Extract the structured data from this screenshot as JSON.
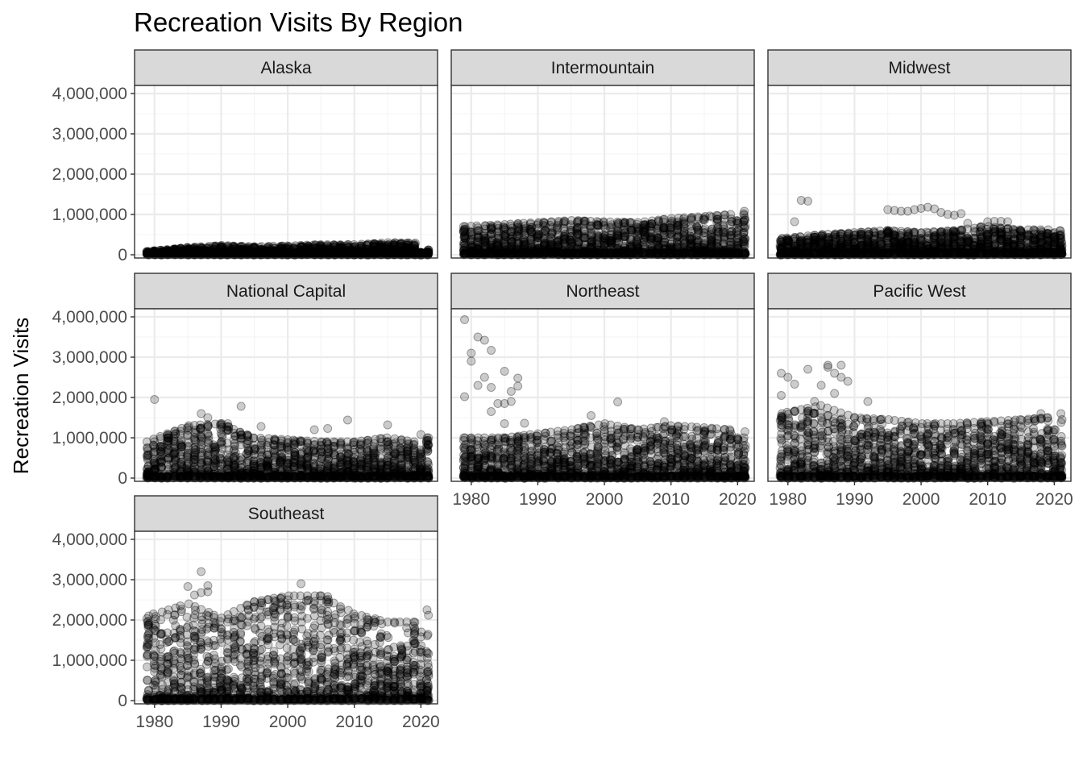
{
  "chart_data": {
    "type": "scatter",
    "title": "Recreation Visits By Region",
    "xlabel": "",
    "ylabel": "Recreation Visits",
    "xlim": [
      1977,
      2022.5
    ],
    "ylim": [
      -80000,
      4200000
    ],
    "x_ticks": [
      1980,
      1990,
      2000,
      2010,
      2020
    ],
    "x_tick_labels": [
      "1980",
      "1990",
      "2000",
      "2010",
      "2020"
    ],
    "y_ticks": [
      0,
      1000000,
      2000000,
      3000000,
      4000000
    ],
    "y_tick_labels": [
      "0",
      "1,000,000",
      "2,000,000",
      "3,000,000",
      "4,000,000"
    ],
    "grid": true,
    "facets": [
      {
        "name": "Alaska",
        "envelope": {
          "years": [
            1979,
            1985,
            1990,
            1995,
            2000,
            2005,
            2010,
            2015,
            2019,
            2020,
            2021
          ],
          "max": [
            80000,
            180000,
            230000,
            200000,
            220000,
            250000,
            250000,
            300000,
            290000,
            60000,
            120000
          ]
        },
        "outliers": []
      },
      {
        "name": "Intermountain",
        "envelope": {
          "years": [
            1979,
            1985,
            1990,
            1995,
            2000,
            2005,
            2010,
            2015,
            2019,
            2020,
            2021
          ],
          "max": [
            700000,
            750000,
            800000,
            850000,
            820000,
            800000,
            900000,
            950000,
            1000000,
            850000,
            1080000
          ]
        },
        "outliers": []
      },
      {
        "name": "Midwest",
        "envelope": {
          "years": [
            1979,
            1985,
            1990,
            1995,
            2000,
            2005,
            2010,
            2015,
            2019,
            2020,
            2021
          ],
          "max": [
            400000,
            500000,
            550000,
            600000,
            550000,
            600000,
            700000,
            620000,
            620000,
            550000,
            600000
          ]
        },
        "outliers": [
          {
            "x": 1981,
            "y": 820000
          },
          {
            "x": 1982,
            "y": 1350000
          },
          {
            "x": 1983,
            "y": 1330000
          },
          {
            "x": 1995,
            "y": 1120000
          },
          {
            "x": 1996,
            "y": 1100000
          },
          {
            "x": 1997,
            "y": 1080000
          },
          {
            "x": 1998,
            "y": 1080000
          },
          {
            "x": 1999,
            "y": 1120000
          },
          {
            "x": 2000,
            "y": 1150000
          },
          {
            "x": 2001,
            "y": 1180000
          },
          {
            "x": 2002,
            "y": 1140000
          },
          {
            "x": 2003,
            "y": 1050000
          },
          {
            "x": 2004,
            "y": 1000000
          },
          {
            "x": 2005,
            "y": 980000
          },
          {
            "x": 2006,
            "y": 1020000
          },
          {
            "x": 2007,
            "y": 780000
          },
          {
            "x": 2009,
            "y": 700000
          },
          {
            "x": 2010,
            "y": 820000
          },
          {
            "x": 2011,
            "y": 830000
          },
          {
            "x": 2012,
            "y": 830000
          },
          {
            "x": 2013,
            "y": 820000
          }
        ]
      },
      {
        "name": "National Capital",
        "envelope": {
          "years": [
            1979,
            1985,
            1990,
            1995,
            2000,
            2005,
            2010,
            2015,
            2019,
            2020,
            2021
          ],
          "max": [
            900000,
            1300000,
            1350000,
            1000000,
            950000,
            900000,
            900000,
            1000000,
            900000,
            700000,
            1000000
          ]
        },
        "outliers": [
          {
            "x": 1980,
            "y": 1950000
          },
          {
            "x": 1987,
            "y": 1600000
          },
          {
            "x": 1988,
            "y": 1500000
          },
          {
            "x": 1993,
            "y": 1780000
          },
          {
            "x": 1991,
            "y": 1350000
          },
          {
            "x": 1996,
            "y": 1280000
          },
          {
            "x": 2004,
            "y": 1200000
          },
          {
            "x": 2006,
            "y": 1230000
          },
          {
            "x": 2009,
            "y": 1440000
          },
          {
            "x": 2015,
            "y": 1320000
          },
          {
            "x": 2020,
            "y": 1080000
          }
        ]
      },
      {
        "name": "Northeast",
        "envelope": {
          "years": [
            1979,
            1985,
            1990,
            1995,
            2000,
            2005,
            2010,
            2015,
            2019,
            2020,
            2021
          ],
          "max": [
            1000000,
            1000000,
            1100000,
            1200000,
            1350000,
            1200000,
            1300000,
            1250000,
            1200000,
            1000000,
            1150000
          ]
        },
        "outliers": [
          {
            "x": 1979,
            "y": 3930000
          },
          {
            "x": 1979,
            "y": 2020000
          },
          {
            "x": 1980,
            "y": 3100000
          },
          {
            "x": 1980,
            "y": 2900000
          },
          {
            "x": 1981,
            "y": 3500000
          },
          {
            "x": 1981,
            "y": 2300000
          },
          {
            "x": 1982,
            "y": 3420000
          },
          {
            "x": 1982,
            "y": 2500000
          },
          {
            "x": 1983,
            "y": 3170000
          },
          {
            "x": 1983,
            "y": 2250000
          },
          {
            "x": 1983,
            "y": 1650000
          },
          {
            "x": 1984,
            "y": 1850000
          },
          {
            "x": 1985,
            "y": 2650000
          },
          {
            "x": 1985,
            "y": 1850000
          },
          {
            "x": 1985,
            "y": 1350000
          },
          {
            "x": 1986,
            "y": 2150000
          },
          {
            "x": 1986,
            "y": 1900000
          },
          {
            "x": 1987,
            "y": 2480000
          },
          {
            "x": 1987,
            "y": 2280000
          },
          {
            "x": 1988,
            "y": 1360000
          },
          {
            "x": 1998,
            "y": 1550000
          },
          {
            "x": 2002,
            "y": 1890000
          },
          {
            "x": 2009,
            "y": 1400000
          }
        ]
      },
      {
        "name": "Pacific West",
        "envelope": {
          "years": [
            1979,
            1985,
            1990,
            1995,
            2000,
            2005,
            2010,
            2015,
            2019,
            2020,
            2021
          ],
          "max": [
            1600000,
            1800000,
            1500000,
            1450000,
            1350000,
            1350000,
            1400000,
            1450000,
            1500000,
            1200000,
            1450000
          ]
        },
        "outliers": [
          {
            "x": 1979,
            "y": 2600000
          },
          {
            "x": 1979,
            "y": 2050000
          },
          {
            "x": 1980,
            "y": 2500000
          },
          {
            "x": 1981,
            "y": 2330000
          },
          {
            "x": 1983,
            "y": 2700000
          },
          {
            "x": 1985,
            "y": 2300000
          },
          {
            "x": 1986,
            "y": 2750000
          },
          {
            "x": 1986,
            "y": 2800000
          },
          {
            "x": 1987,
            "y": 2600000
          },
          {
            "x": 1988,
            "y": 2800000
          },
          {
            "x": 1988,
            "y": 2500000
          },
          {
            "x": 1989,
            "y": 2400000
          },
          {
            "x": 1987,
            "y": 2100000
          },
          {
            "x": 1984,
            "y": 1900000
          },
          {
            "x": 1992,
            "y": 1900000
          },
          {
            "x": 2021,
            "y": 1600000
          },
          {
            "x": 2018,
            "y": 1600000
          }
        ]
      },
      {
        "name": "Southeast",
        "envelope": {
          "years": [
            1979,
            1985,
            1990,
            1995,
            2000,
            2005,
            2010,
            2015,
            2019,
            2020,
            2021
          ],
          "max": [
            2100000,
            2400000,
            2050000,
            2450000,
            2600000,
            2600000,
            2150000,
            1950000,
            1950000,
            1700000,
            2250000
          ]
        },
        "outliers": [
          {
            "x": 1987,
            "y": 3200000
          },
          {
            "x": 1985,
            "y": 2830000
          },
          {
            "x": 1986,
            "y": 2620000
          },
          {
            "x": 1987,
            "y": 2680000
          },
          {
            "x": 1988,
            "y": 2850000
          },
          {
            "x": 1988,
            "y": 2700000
          },
          {
            "x": 2002,
            "y": 2900000
          },
          {
            "x": 2005,
            "y": 2600000
          },
          {
            "x": 2006,
            "y": 2580000
          },
          {
            "x": 1995,
            "y": 2450000
          },
          {
            "x": 2000,
            "y": 2500000
          }
        ]
      }
    ]
  }
}
